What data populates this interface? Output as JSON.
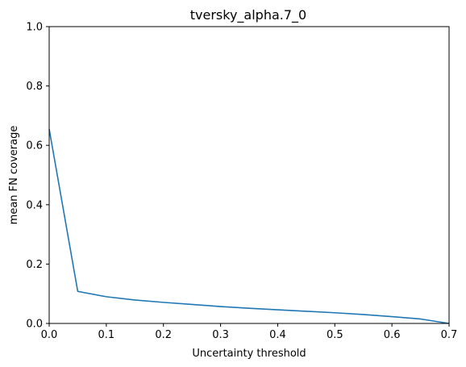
{
  "chart_data": {
    "type": "line",
    "title": "tversky_alpha.7_0",
    "xlabel": "Uncertainty threshold",
    "ylabel": "mean FN coverage",
    "xlim": [
      0,
      0.7
    ],
    "ylim": [
      0,
      1.0
    ],
    "grid": false,
    "x_ticks": [
      {
        "value": 0.0,
        "label": "0.0"
      },
      {
        "value": 0.1,
        "label": "0.1"
      },
      {
        "value": 0.2,
        "label": "0.2"
      },
      {
        "value": 0.3,
        "label": "0.3"
      },
      {
        "value": 0.4,
        "label": "0.4"
      },
      {
        "value": 0.5,
        "label": "0.5"
      },
      {
        "value": 0.6,
        "label": "0.6"
      },
      {
        "value": 0.7,
        "label": "0.7"
      }
    ],
    "y_ticks": [
      {
        "value": 0.0,
        "label": "0.0"
      },
      {
        "value": 0.2,
        "label": "0.2"
      },
      {
        "value": 0.4,
        "label": "0.4"
      },
      {
        "value": 0.6,
        "label": "0.6"
      },
      {
        "value": 0.8,
        "label": "0.8"
      },
      {
        "value": 1.0,
        "label": "1.0"
      }
    ],
    "series": [
      {
        "name": "mean FN coverage",
        "color": "#1f77b4",
        "x": [
          0.0,
          0.05,
          0.1,
          0.15,
          0.2,
          0.25,
          0.3,
          0.35,
          0.4,
          0.45,
          0.5,
          0.55,
          0.6,
          0.65,
          0.7
        ],
        "y": [
          0.655,
          0.108,
          0.09,
          0.079,
          0.071,
          0.064,
          0.057,
          0.051,
          0.046,
          0.041,
          0.036,
          0.03,
          0.023,
          0.015,
          0.0
        ]
      }
    ]
  }
}
